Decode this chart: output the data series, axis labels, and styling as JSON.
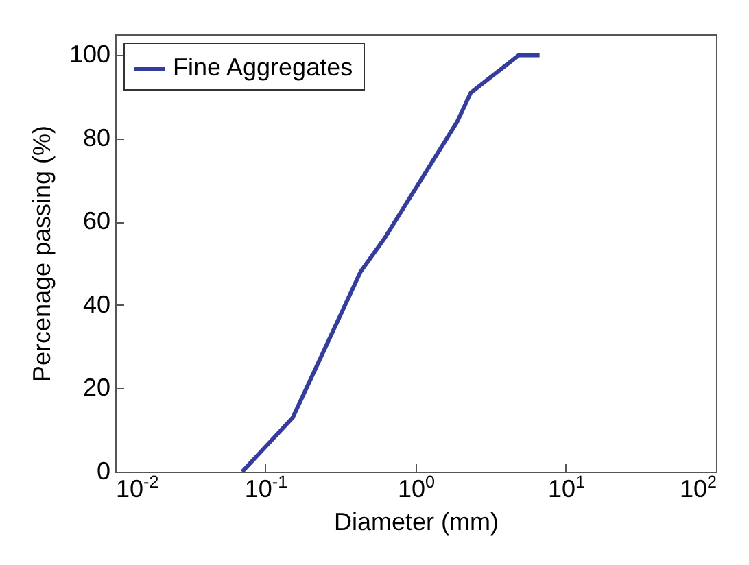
{
  "chart_data": {
    "type": "line",
    "xlabel": "Diameter (mm)",
    "ylabel": "Percenage passing (%)",
    "log": "x",
    "xlim": [
      0.01,
      100
    ],
    "xticks": [
      {
        "value": 0.01,
        "label": "10$^{-2}$"
      },
      {
        "value": 0.1,
        "label": "10$^{-1}$"
      },
      {
        "value": 1,
        "label": "10$^{0}$"
      },
      {
        "value": 10,
        "label": "10$^{1}$"
      },
      {
        "value": 100,
        "label": "10$^{2}$"
      }
    ],
    "ylim": [
      0,
      105
    ],
    "yticks": [
      0,
      20,
      40,
      60,
      80,
      100
    ],
    "grid": false,
    "legend": "top left",
    "series": [
      {
        "name": "Fine Aggregates",
        "color": "#343c9c",
        "x": [
          0.07,
          0.152,
          0.43,
          0.62,
          1.89,
          2.33,
          4.87,
          6.68
        ],
        "values": [
          0,
          13,
          48,
          56,
          84,
          91,
          100,
          100
        ]
      }
    ]
  }
}
